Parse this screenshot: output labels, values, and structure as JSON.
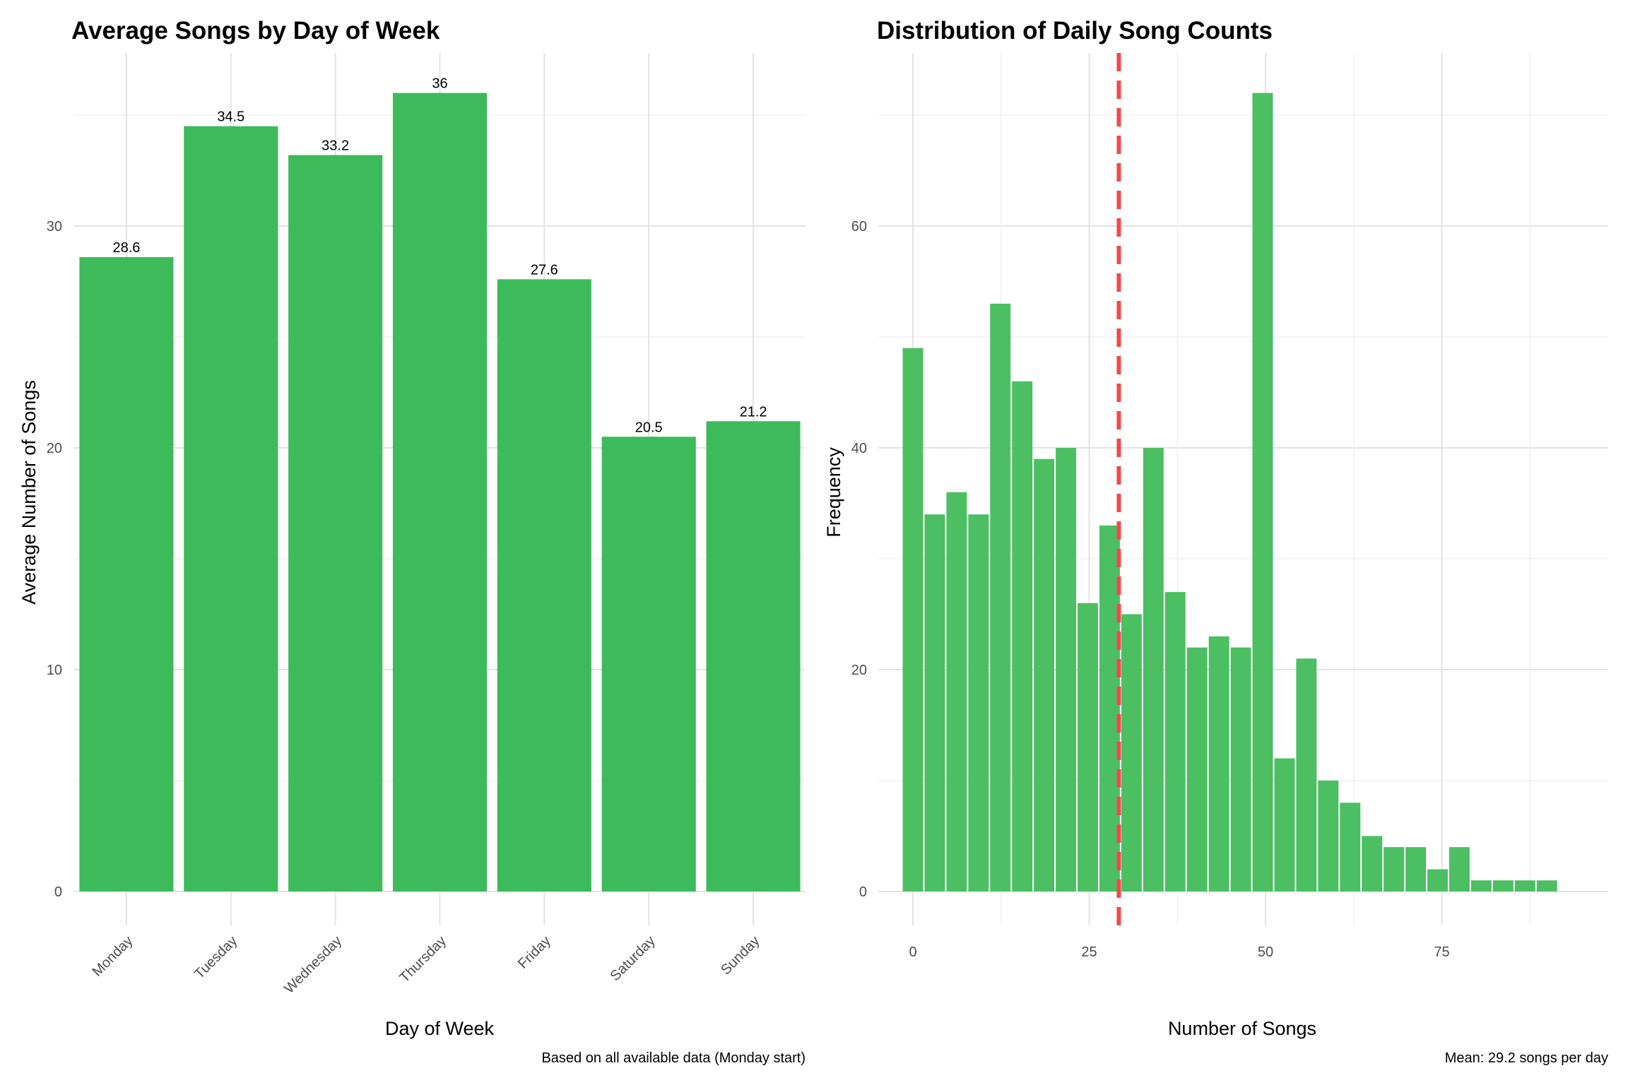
{
  "chart_data": [
    {
      "type": "bar",
      "title": "Average Songs by Day of Week",
      "xlabel": "Day of Week",
      "ylabel": "Average Number of Songs",
      "caption": "Based on all available data (Monday start)",
      "categories": [
        "Monday",
        "Tuesday",
        "Wednesday",
        "Thursday",
        "Friday",
        "Saturday",
        "Sunday"
      ],
      "values": [
        28.6,
        34.5,
        33.2,
        36,
        27.6,
        20.5,
        21.2
      ],
      "data_labels": [
        "28.6",
        "34.5",
        "33.2",
        "36",
        "27.6",
        "20.5",
        "21.2"
      ],
      "ylim": [
        0,
        38
      ],
      "yticks": [
        0,
        10,
        20,
        30
      ],
      "ytick_labels": [
        "0",
        "10",
        "20",
        "30"
      ],
      "bar_color": "#3dba5a",
      "grid": true,
      "legend": "none"
    },
    {
      "type": "bar",
      "subtype": "histogram",
      "title": "Distribution of Daily Song Counts",
      "xlabel": "Number of Songs",
      "ylabel": "Frequency",
      "caption": "Mean: 29.2 songs per day",
      "bin_width": 3.1,
      "bin_centers": [
        0,
        3.1,
        6.2,
        9.3,
        12.4,
        15.5,
        18.6,
        21.7,
        24.8,
        27.9,
        31,
        34.1,
        37.2,
        40.3,
        43.4,
        46.5,
        49.6,
        52.7,
        55.8,
        58.9,
        62,
        65.1,
        68.2,
        71.3,
        74.4,
        77.5,
        80.6,
        83.7,
        86.8,
        89.9
      ],
      "values": [
        49,
        34,
        36,
        34,
        53,
        46,
        39,
        40,
        26,
        33,
        25,
        40,
        27,
        22,
        23,
        22,
        72,
        12,
        21,
        10,
        8,
        5,
        4,
        4,
        2,
        4,
        1,
        1,
        1,
        1
      ],
      "xlim": [
        -4.7,
        98.8
      ],
      "ylim": [
        -2,
        74
      ],
      "xticks": [
        0,
        25,
        50,
        75
      ],
      "xtick_labels": [
        "0",
        "25",
        "50",
        "75"
      ],
      "yticks": [
        0,
        20,
        40,
        60
      ],
      "ytick_labels": [
        "0",
        "20",
        "40",
        "60"
      ],
      "mean_line": 29.2,
      "mean_line_color": "#f04a4a",
      "bar_color": "#4cbf63",
      "grid": true,
      "legend": "none"
    }
  ]
}
